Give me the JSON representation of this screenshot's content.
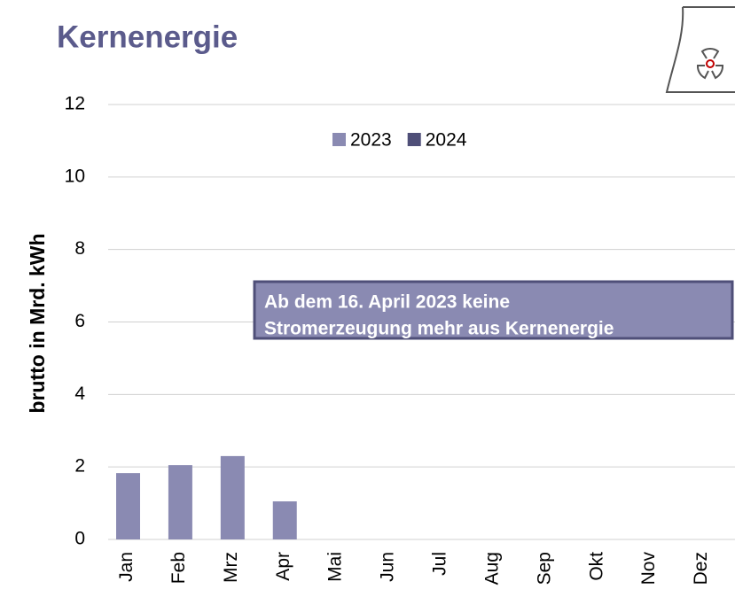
{
  "chart_data": {
    "type": "bar",
    "title": "Kernenergie",
    "y_label": "brutto in  Mrd. kWh",
    "categories": [
      "Jan",
      "Feb",
      "Mrz",
      "Apr",
      "Mai",
      "Jun",
      "Jul",
      "Aug",
      "Sep",
      "Okt",
      "Nov",
      "Dez"
    ],
    "series": [
      {
        "name": "2023",
        "color": "#8a8ab2",
        "values": [
          1.83,
          2.05,
          2.3,
          1.05,
          null,
          null,
          null,
          null,
          null,
          null,
          null,
          null
        ]
      },
      {
        "name": "2024",
        "color": "#4f4f78",
        "values": [
          null,
          null,
          null,
          null,
          null,
          null,
          null,
          null,
          null,
          null,
          null,
          null
        ]
      }
    ],
    "ylim": [
      0,
      12
    ],
    "yticks": [
      0,
      2,
      4,
      6,
      8,
      10,
      12
    ],
    "grid": true,
    "legend": "top",
    "annotation": {
      "lines": [
        "Ab dem 16. April 2023 keine",
        "Stromerzeugung mehr aus Kernenergie"
      ]
    }
  }
}
